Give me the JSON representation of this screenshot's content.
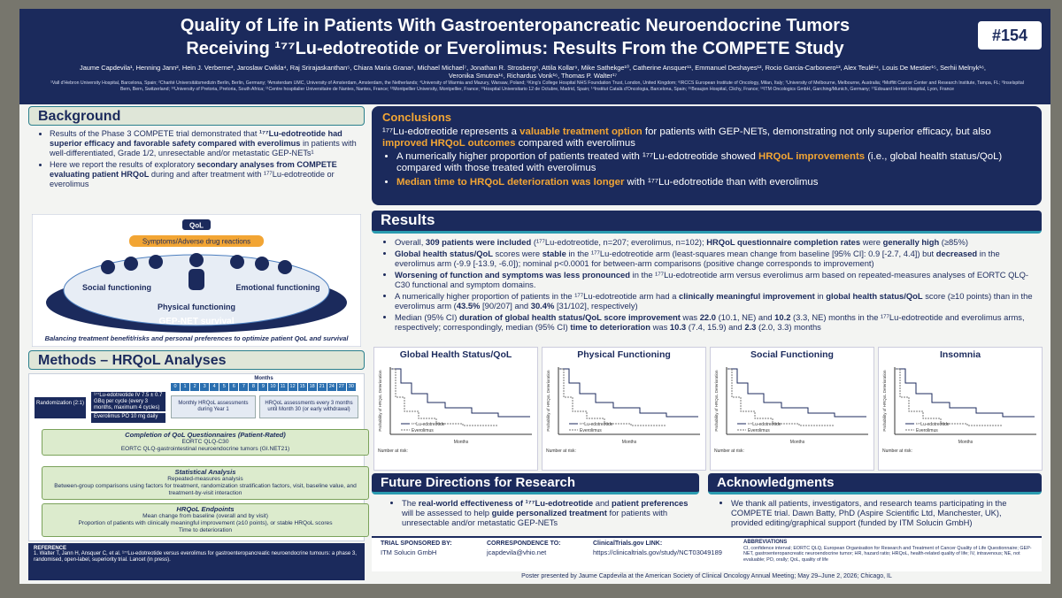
{
  "header": {
    "title_line1": "Quality of Life in Patients With Gastroenteropancreatic Neuroendocrine Tumors",
    "title_line2": "Receiving ¹⁷⁷Lu-edotreotide or Everolimus: Results From the COMPETE Study",
    "poster_number": "#154",
    "authors": "Jaume Capdevila¹, Henning Jann², Hein J. Verberne³, Jaroslaw Cwikla⁴, Raj Srirajaskanthan⁵, Chiara Maria Grana⁶, Michael Michael⁷, Jonathan R. Strosberg⁸, Attila Kollar⁹, Mike Sathekge¹⁰, Catherine Ansquer¹¹, Emmanuel Deshayes¹², Rocio Garcia-Carbonero¹³, Alex Teulé¹⁴, Louis De Mestier¹⁵, Serhii Melnyk¹⁶, Veronika Smutna¹⁶, Richardus Vonk¹⁶, Thomas P. Walter¹⁷",
    "affiliations": "¹Vall d'Hebron University Hospital, Barcelona, Spain; ²Charité Universitätsmedizin Berlin, Berlin, Germany; ³Amsterdam UMC, University of Amsterdam, Amsterdam, the Netherlands; ⁴University of Warmia and Mazury, Warsaw, Poland; ⁵King's College Hospital NHS Foundation Trust, London, United Kingdom; ⁶IRCCS European Institute of Oncology, Milan, Italy; ⁷University of Melbourne, Melbourne, Australia; ⁸Moffitt Cancer Center and Research Institute, Tampa, FL; ⁹Inselspital Bern, Bern, Switzerland; ¹⁰University of Pretoria, Pretoria, South Africa; ¹¹Centre hospitalier Universitaire de Nantes, Nantes, France; ¹²Montpellier University, Montpellier, France; ¹³Hospital Universitario 12 de Octubre, Madrid, Spain; ¹⁴Institut Català d'Oncologia, Barcelona, Spain; ¹⁵Beaujon Hospital, Clichy, France; ¹⁶ITM Oncologics GmbH, Garching/Munich, Germany; ¹⁷Edouard Herriot Hospital, Lyon, France"
  },
  "background": {
    "heading": "Background",
    "bullets": [
      [
        {
          "text": "Results of the Phase 3 COMPETE trial demonstrated that "
        },
        {
          "text": "¹⁷⁷Lu-edotreotide had superior efficacy and favorable safety compared with everolimus",
          "bold": true
        },
        {
          "text": " in patients with well-differentiated, Grade 1/2, unresectable and/or metastatic GEP-NETs¹"
        }
      ],
      [
        {
          "text": "Here we report the results of exploratory "
        },
        {
          "text": "secondary analyses from COMPETE evaluating patient HRQoL",
          "bold": true
        },
        {
          "text": " during and after treatment with ¹⁷⁷Lu-edotreotide or everolimus"
        }
      ]
    ],
    "diagram": {
      "qol": "QoL",
      "symptoms": "Symptoms/Adverse drug reactions",
      "social": "Social functioning",
      "emotional": "Emotional functioning",
      "physical": "Physical functioning",
      "survival": "GEP-NET survival",
      "caption": "Balancing treatment benefit/risks and personal preferences to optimize patient QoL and survival"
    }
  },
  "methods": {
    "heading": "Methods – HRQoL Analyses",
    "months_label": "Months",
    "months": [
      0,
      1,
      2,
      3,
      4,
      5,
      6,
      7,
      8,
      9,
      10,
      11,
      12,
      15,
      18,
      21,
      24,
      27,
      30
    ],
    "randomization": "Randomization (2:1)",
    "arm_lu": "¹⁷⁷Lu-edotreotide IV 7.5 ± 0.7 GBq per cycle (every 3 months, maximum 4 cycles)",
    "arm_ev": "Everolimus PO 10 mg daily",
    "assess_year1": "Monthly HRQoL assessments during Year 1",
    "assess_later": "HRQoL assessments every 3 months until Month 30 (or early withdrawal)",
    "sections": [
      {
        "title": "Completion of QoL Questionnaires (Patient-Rated)",
        "items": [
          "EORTC QLQ-C30",
          "EORTC QLQ-gastrointestinal neuroendocrine tumors (GI.NET21)"
        ]
      },
      {
        "title": "Statistical Analysis",
        "items": [
          "Repeated-measures analysis",
          "Between-group comparisons using factors for treatment, randomization stratification factors, visit, baseline value, and treatment-by-visit interaction"
        ]
      },
      {
        "title": "HRQoL Endpoints",
        "items": [
          "Mean change from baseline (overall and by visit)",
          "Proportion of patients with clinically meaningful improvement (≥10 points), or stable HRQoL scores",
          "Time to deterioration"
        ]
      }
    ]
  },
  "conclusions": {
    "heading": "Conclusions",
    "lead": [
      {
        "text": "¹⁷⁷Lu-edotreotide represents a "
      },
      {
        "text": "valuable treatment option",
        "bold": true
      },
      {
        "text": " for patients with GEP-NETs, demonstrating not only superior efficacy, but also "
      },
      {
        "text": "improved HRQoL outcomes",
        "bold": true
      },
      {
        "text": " compared with everolimus"
      }
    ],
    "bullets": [
      [
        {
          "text": "A numerically higher proportion of patients treated with ¹⁷⁷Lu-edotreotide showed "
        },
        {
          "text": "HRQoL improvements",
          "bold": true
        },
        {
          "text": " (i.e., global health status/QoL) compared with those treated with everolimus"
        }
      ],
      [
        {
          "text": "Median time to HRQoL deterioration was longer",
          "bold": true
        },
        {
          "text": " with ¹⁷⁷Lu-edotreotide than with everolimus"
        }
      ]
    ]
  },
  "results": {
    "heading": "Results",
    "bullets": [
      [
        {
          "text": "Overall, "
        },
        {
          "text": "309 patients were included",
          "bold": true
        },
        {
          "text": " (¹⁷⁷Lu-edotreotide, n=207; everolimus, n=102); "
        },
        {
          "text": "HRQoL questionnaire completion rates",
          "bold": true
        },
        {
          "text": " were "
        },
        {
          "text": "generally high",
          "bold": true
        },
        {
          "text": " (≥85%)"
        }
      ],
      [
        {
          "text": "Global health status/QoL",
          "bold": true
        },
        {
          "text": " scores were "
        },
        {
          "text": "stable",
          "bold": true
        },
        {
          "text": " in the ¹⁷⁷Lu-edotreotide arm (least-squares mean change from baseline [95% CI]: 0.9 [-2.7, 4.4]) but "
        },
        {
          "text": "decreased",
          "bold": true
        },
        {
          "text": " in the everolimus arm (-9.9 [-13.9, -6.0]); nominal p<0.0001 for between-arm comparisons (positive change corresponds to improvement)"
        }
      ],
      [
        {
          "text": "Worsening of function and symptoms was less pronounced",
          "bold": true
        },
        {
          "text": " in the ¹⁷⁷Lu-edotreotide arm versus everolimus arm based on repeated-measures analyses of EORTC QLQ-C30 functional and symptom domains."
        }
      ],
      [
        {
          "text": "A numerically higher proportion of patients in the ¹⁷⁷Lu-edotreotide arm had a "
        },
        {
          "text": "clinically meaningful improvement",
          "bold": true
        },
        {
          "text": " in "
        },
        {
          "text": "global health status/QoL",
          "bold": true
        },
        {
          "text": " score (≥10 points) than in the everolimus arm ("
        },
        {
          "text": "43.5%",
          "bold": true
        },
        {
          "text": " [90/207] and "
        },
        {
          "text": "30.4%",
          "bold": true
        },
        {
          "text": " [31/102], respectively)"
        }
      ],
      [
        {
          "text": "Median (95% CI) "
        },
        {
          "text": "duration of global health status/QoL score improvement",
          "bold": true
        },
        {
          "text": " was "
        },
        {
          "text": "22.0",
          "bold": true
        },
        {
          "text": " (10.1, NE) and "
        },
        {
          "text": "10.2",
          "bold": true
        },
        {
          "text": " (3.3, NE) months in the ¹⁷⁷Lu-edotreotide and everolimus arms, respectively; correspondingly, median (95% CI) "
        },
        {
          "text": "time to deterioration",
          "bold": true
        },
        {
          "text": " was "
        },
        {
          "text": "10.3",
          "bold": true
        },
        {
          "text": " (7.4, 15.9) and "
        },
        {
          "text": "2.3",
          "bold": true
        },
        {
          "text": " (2.0, 3.3) months"
        }
      ]
    ],
    "plots": {
      "y_label": "Probability of HRQoL Deterioration",
      "x_label": "Months",
      "legend_lu": "¹⁷⁷Lu-edotreotide",
      "legend_ev": "Everolimus",
      "at_risk": "Number at risk:",
      "titles": [
        "Global Health Status/QoL",
        "Physical Functioning",
        "Social Functioning",
        "Insomnia"
      ]
    }
  },
  "future": {
    "heading": "Future Directions for Research",
    "bullets": [
      [
        {
          "text": "The "
        },
        {
          "text": "real-world effectiveness of ¹⁷⁷Lu-edotreotide",
          "bold": true
        },
        {
          "text": " and "
        },
        {
          "text": "patient preferences",
          "bold": true
        },
        {
          "text": " will be assessed to help "
        },
        {
          "text": "guide personalized treatment",
          "bold": true
        },
        {
          "text": " for patients with unresectable and/or metastatic GEP-NETs"
        }
      ]
    ]
  },
  "acknowledgments": {
    "heading": "Acknowledgments",
    "text": "We thank all patients, investigators, and research teams participating in the COMPETE trial. Dawn Batty, PhD (Aspire Scientific Ltd, Manchester, UK), provided editing/graphical support (funded by ITM Solucin GmbH)"
  },
  "footer": {
    "reference_heading": "REFERENCE",
    "reference": "1. Walter T, Jann H, Ansquer C, et al. ¹⁷⁷Lu-edotreotide versus everolimus for gastroenteropancreatic neuroendocrine tumours: a phase 3, randomised, open-label, superiority trial. Lancet (in press).",
    "sponsor_heading": "TRIAL SPONSORED BY:",
    "sponsor": "ITM Solucin GmbH",
    "correspondence_heading": "CORRESPONDENCE TO:",
    "correspondence": "jcapdevila@vhio.net",
    "link_heading": "ClinicalTrials.gov LINK:",
    "link": "https://clinicaltrials.gov/study/NCT03049189",
    "abbreviations_heading": "ABBREVIATIONS",
    "abbreviations": "CI, confidence interval; EORTC QLQ, European Organisation for Research and Treatment of Cancer Quality of Life Questionnaire; GEP-NET, gastroenteropancreatic neuroendocrine tumor; HR, hazard ratio; HRQoL, health-related quality of life; IV, intravenous; NE, not evaluable; PO, orally; QoL, quality of life",
    "presented": "Poster presented by Jaume Capdevila at the American Society of Clinical Oncology Annual Meeting; May 29–June 2, 2026; Chicago, IL"
  }
}
